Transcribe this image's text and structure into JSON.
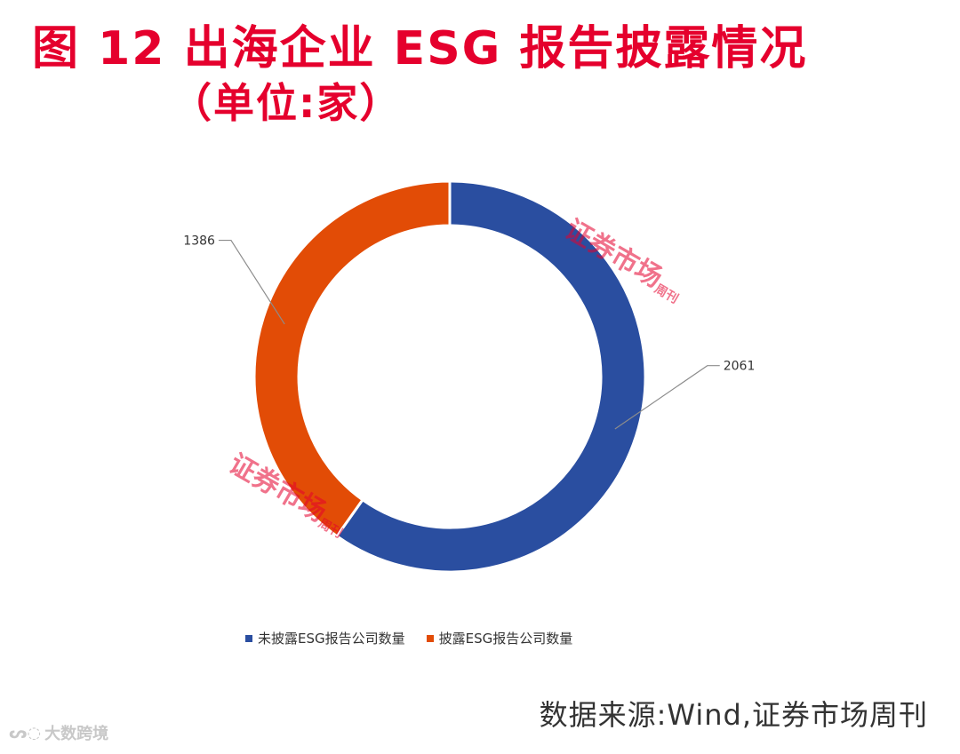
{
  "header": {
    "title": "图 12  出海企业 ESG 报告披露情况",
    "subtitle": "（单位:家）"
  },
  "chart_data": {
    "type": "pie",
    "variant": "donut",
    "title": "",
    "series": [
      {
        "name": "未披露ESG报告公司数量",
        "value": 2061,
        "color": "#2a4ea0"
      },
      {
        "name": "披露ESG报告公司数量",
        "value": 1386,
        "color": "#e24c06"
      }
    ],
    "data_labels": [
      "2061",
      "1386"
    ],
    "legend_position": "bottom"
  },
  "watermark": {
    "text": "证券市场",
    "small": "周刊"
  },
  "source": "数据来源:Wind,证券市场周刊",
  "brand": {
    "text": "大数跨境",
    "icon": "logo-icon"
  }
}
